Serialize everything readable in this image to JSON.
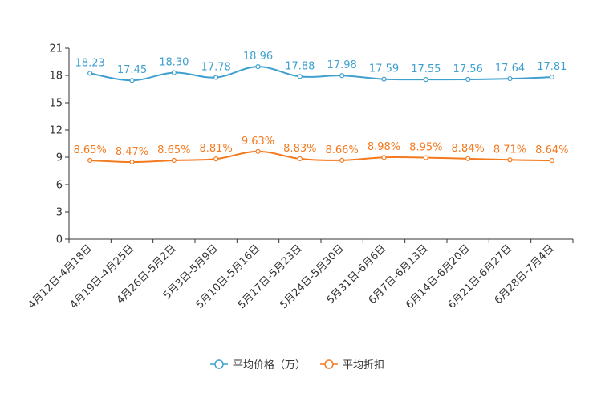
{
  "chart_data": {
    "type": "line",
    "title": "",
    "xlabel": "",
    "ylabel": "",
    "ylim": [
      0,
      21
    ],
    "yticks": [
      0,
      3,
      6,
      9,
      12,
      15,
      18,
      21
    ],
    "ytick_labels": [
      "0",
      "3",
      "6",
      "9",
      "12",
      "15",
      "18",
      "21"
    ],
    "categories": [
      "4月12日-4月18日",
      "4月19日-4月25日",
      "4月26日-5月2日",
      "5月3日-5月9日",
      "5月10日-5月16日",
      "5月17日-5月23日",
      "5月24日-5月30日",
      "5月31日-6月6日",
      "6月7日-6月13日",
      "6月14日-6月20日",
      "6月21日-6月27日",
      "6月28日-7月4日"
    ],
    "series": [
      {
        "name": "平均价格（万）",
        "color": "#3fa0cf",
        "values": [
          18.23,
          17.45,
          18.3,
          17.78,
          18.96,
          17.88,
          17.98,
          17.59,
          17.55,
          17.56,
          17.64,
          17.81
        ],
        "labels": [
          "18.23",
          "17.45",
          "18.30",
          "17.78",
          "18.96",
          "17.88",
          "17.98",
          "17.59",
          "17.55",
          "17.56",
          "17.64",
          "17.81"
        ]
      },
      {
        "name": "平均折扣",
        "color": "#f47a20",
        "values": [
          8.65,
          8.47,
          8.65,
          8.81,
          9.63,
          8.83,
          8.66,
          8.98,
          8.95,
          8.84,
          8.71,
          8.64
        ],
        "labels": [
          "8.65%",
          "8.47%",
          "8.65%",
          "8.81%",
          "9.63%",
          "8.83%",
          "8.66%",
          "8.98%",
          "8.95%",
          "8.84%",
          "8.71%",
          "8.64%"
        ]
      }
    ],
    "legend": {
      "placement": "bottom-center"
    },
    "grid": false
  }
}
